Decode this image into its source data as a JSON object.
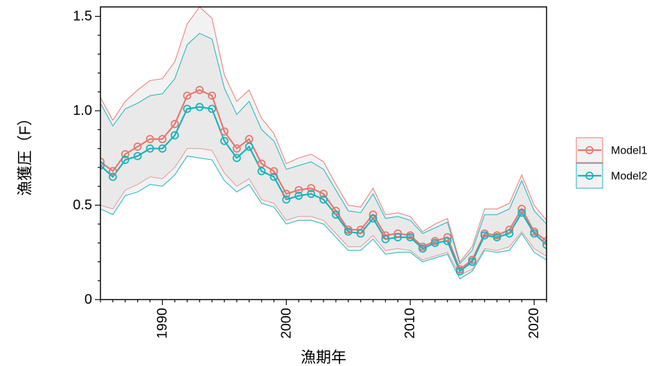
{
  "chart_data": {
    "type": "line",
    "xlabel": "漁期年",
    "ylabel": "漁獲圧（F）",
    "xlim": [
      1985,
      2021
    ],
    "ylim": [
      0,
      1.55
    ],
    "x_ticks": [
      1990,
      2000,
      2010,
      2020
    ],
    "x_tick_labels": [
      "1990",
      "2000",
      "2010",
      "2020"
    ],
    "y_ticks": [
      0,
      0.5,
      1.0,
      1.5
    ],
    "y_tick_labels": [
      "0",
      "0.5",
      "1.0",
      "1.5"
    ],
    "x": [
      1985,
      1986,
      1987,
      1988,
      1989,
      1990,
      1991,
      1992,
      1993,
      1994,
      1995,
      1996,
      1997,
      1998,
      1999,
      2000,
      2001,
      2002,
      2003,
      2004,
      2005,
      2006,
      2007,
      2008,
      2009,
      2010,
      2011,
      2012,
      2013,
      2014,
      2015,
      2016,
      2017,
      2018,
      2019,
      2020,
      2021
    ],
    "series": [
      {
        "name": "Model1",
        "color": "#E8766E",
        "values": [
          0.73,
          0.68,
          0.77,
          0.81,
          0.85,
          0.85,
          0.93,
          1.08,
          1.11,
          1.08,
          0.89,
          0.8,
          0.85,
          0.72,
          0.68,
          0.56,
          0.58,
          0.59,
          0.56,
          0.47,
          0.37,
          0.37,
          0.45,
          0.34,
          0.35,
          0.34,
          0.28,
          0.31,
          0.33,
          0.16,
          0.21,
          0.35,
          0.34,
          0.37,
          0.48,
          0.36,
          0.31
        ],
        "upper": [
          1.07,
          0.95,
          1.05,
          1.11,
          1.16,
          1.17,
          1.26,
          1.46,
          1.55,
          1.49,
          1.19,
          1.05,
          1.11,
          0.96,
          0.88,
          0.72,
          0.75,
          0.77,
          0.73,
          0.61,
          0.5,
          0.49,
          0.59,
          0.45,
          0.46,
          0.44,
          0.36,
          0.4,
          0.43,
          0.2,
          0.28,
          0.48,
          0.48,
          0.51,
          0.66,
          0.5,
          0.42
        ],
        "lower": [
          0.5,
          0.48,
          0.58,
          0.61,
          0.65,
          0.64,
          0.7,
          0.8,
          0.8,
          0.79,
          0.67,
          0.6,
          0.64,
          0.53,
          0.51,
          0.42,
          0.44,
          0.44,
          0.42,
          0.35,
          0.28,
          0.28,
          0.34,
          0.26,
          0.27,
          0.26,
          0.21,
          0.23,
          0.25,
          0.13,
          0.16,
          0.27,
          0.26,
          0.28,
          0.36,
          0.27,
          0.23
        ]
      },
      {
        "name": "Model2",
        "color": "#17B3BD",
        "values": [
          0.71,
          0.65,
          0.74,
          0.76,
          0.8,
          0.8,
          0.87,
          1.01,
          1.02,
          1.01,
          0.84,
          0.75,
          0.81,
          0.68,
          0.65,
          0.53,
          0.55,
          0.56,
          0.53,
          0.45,
          0.36,
          0.35,
          0.43,
          0.32,
          0.33,
          0.33,
          0.27,
          0.3,
          0.31,
          0.15,
          0.2,
          0.34,
          0.33,
          0.35,
          0.46,
          0.35,
          0.29
        ],
        "upper": [
          1.04,
          0.92,
          1.01,
          1.04,
          1.08,
          1.09,
          1.17,
          1.35,
          1.41,
          1.38,
          1.12,
          0.98,
          1.05,
          0.9,
          0.84,
          0.69,
          0.71,
          0.73,
          0.69,
          0.58,
          0.47,
          0.46,
          0.56,
          0.43,
          0.44,
          0.42,
          0.35,
          0.38,
          0.41,
          0.19,
          0.26,
          0.45,
          0.45,
          0.48,
          0.63,
          0.47,
          0.4
        ],
        "lower": [
          0.48,
          0.45,
          0.55,
          0.57,
          0.61,
          0.6,
          0.66,
          0.76,
          0.75,
          0.74,
          0.63,
          0.57,
          0.61,
          0.51,
          0.49,
          0.4,
          0.42,
          0.42,
          0.4,
          0.33,
          0.26,
          0.26,
          0.32,
          0.24,
          0.25,
          0.25,
          0.2,
          0.22,
          0.24,
          0.11,
          0.15,
          0.26,
          0.25,
          0.26,
          0.35,
          0.25,
          0.21
        ]
      }
    ],
    "band_fill": "#d9d9d9",
    "legend_position": "right"
  }
}
